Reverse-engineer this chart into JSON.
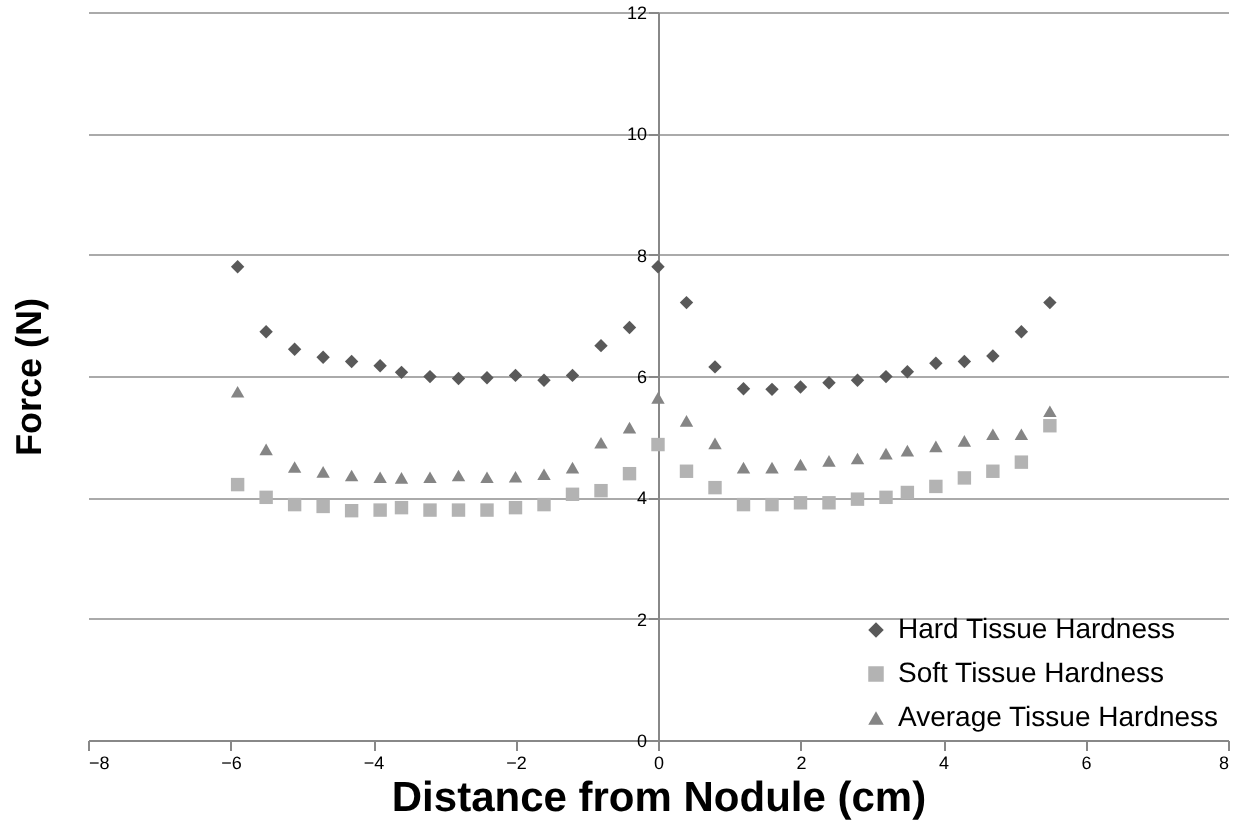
{
  "chart_data": {
    "type": "scatter",
    "xlabel": "Distance from Nodule (cm)",
    "ylabel": "Force (N)",
    "xlim": [
      -8,
      8
    ],
    "xticks": [
      -8,
      -6,
      -4,
      -2,
      0,
      2,
      4,
      6,
      8
    ],
    "ylim": [
      0,
      12
    ],
    "yticks": [
      0,
      2,
      4,
      6,
      8,
      10,
      12
    ],
    "grid": "y",
    "legend": "bottom right",
    "x": [
      -5.9,
      -5.5,
      -5.1,
      -4.7,
      -4.3,
      -3.9,
      -3.6,
      -3.2,
      -2.8,
      -2.4,
      -2.0,
      -1.6,
      -1.2,
      -0.8,
      -0.4,
      0,
      0.4,
      0.8,
      1.2,
      1.6,
      2.0,
      2.4,
      2.8,
      3.2,
      3.5,
      3.9,
      4.3,
      4.7,
      5.1,
      5.5
    ],
    "series": [
      {
        "name": "Hard Tissue Hardness",
        "color": "#595959",
        "marker": "diamond",
        "values": [
          7.8,
          6.73,
          6.44,
          6.31,
          6.24,
          6.17,
          6.06,
          5.99,
          5.96,
          5.97,
          6.01,
          5.93,
          6.01,
          6.5,
          6.8,
          7.8,
          7.21,
          6.15,
          5.79,
          5.78,
          5.82,
          5.89,
          5.93,
          5.99,
          6.07,
          6.21,
          6.24,
          6.33,
          6.73,
          7.21
        ]
      },
      {
        "name": "Soft Tissue Hardness",
        "color": "#b3b3b3",
        "marker": "square",
        "values": [
          4.21,
          4.0,
          3.88,
          3.85,
          3.78,
          3.79,
          3.83,
          3.79,
          3.79,
          3.79,
          3.83,
          3.88,
          4.05,
          4.11,
          4.39,
          4.87,
          4.43,
          4.16,
          3.88,
          3.88,
          3.91,
          3.91,
          3.97,
          4.0,
          4.08,
          4.18,
          4.32,
          4.43,
          4.58,
          5.18
        ]
      },
      {
        "name": "Average Tissue Hardness",
        "color": "#858585",
        "marker": "triangle",
        "values": [
          5.74,
          4.79,
          4.5,
          4.42,
          4.36,
          4.33,
          4.32,
          4.33,
          4.36,
          4.33,
          4.34,
          4.38,
          4.49,
          4.9,
          5.15,
          5.64,
          5.26,
          4.89,
          4.49,
          4.49,
          4.54,
          4.6,
          4.64,
          4.72,
          4.77,
          4.84,
          4.93,
          5.04,
          5.04,
          5.42
        ]
      }
    ]
  }
}
